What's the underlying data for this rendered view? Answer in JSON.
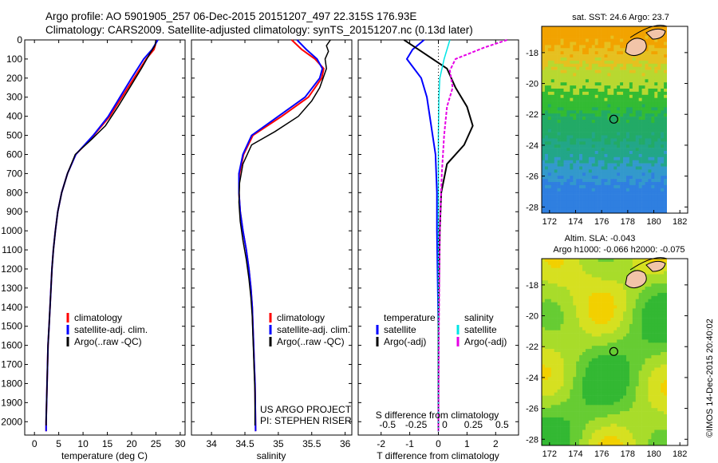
{
  "header": {
    "line1": "Argo profile: AO 5901905_257 06-Dec-2015 20151207_497 22.315S 176.93E",
    "line2": "Climatology: CARS2009. Satellite-adjusted climatology: synTS_20151207.nc (0.13d later)"
  },
  "colors": {
    "climatology": "#ff0000",
    "satellite": "#0000ff",
    "argo": "#000000",
    "satellite_salinity": "#00e5e5",
    "argo_salinity": "#e600e6"
  },
  "depth_ticks": [
    "0",
    "100",
    "200",
    "300",
    "400",
    "500",
    "600",
    "700",
    "800",
    "900",
    "1000",
    "1100",
    "1200",
    "1300",
    "1400",
    "1500",
    "1600",
    "1700",
    "1800",
    "1900",
    "2000"
  ],
  "chart_data": [
    {
      "type": "line",
      "xlabel": "temperature (deg C)",
      "ylabel": "",
      "xlim": [
        -2,
        31
      ],
      "ylim": [
        2070,
        0
      ],
      "xticks": [
        "0",
        "5",
        "10",
        "15",
        "20",
        "25",
        "30"
      ],
      "legend_items": [
        "climatology",
        "satellite-adj. clim.",
        "Argo(..raw -QC)"
      ],
      "series": [
        {
          "name": "climatology",
          "x": [
            25.2,
            24.6,
            23.0,
            20.5,
            18.0,
            15.5,
            12.2,
            8.5,
            6.8,
            5.6,
            4.8,
            4.3,
            3.9,
            3.6,
            3.4,
            3.2,
            3.0,
            2.8,
            2.7,
            2.6,
            2.5,
            2.4,
            2.4
          ],
          "y": [
            0,
            50,
            100,
            200,
            300,
            400,
            500,
            600,
            700,
            800,
            900,
            1000,
            1100,
            1200,
            1300,
            1400,
            1500,
            1600,
            1700,
            1800,
            1900,
            2000,
            2050
          ]
        },
        {
          "name": "satellite-adj. clim.",
          "x": [
            25.4,
            24.2,
            22.5,
            20.0,
            17.6,
            15.2,
            12.1,
            8.5,
            6.8,
            5.6,
            4.8,
            4.3,
            3.9,
            3.6,
            3.4,
            3.2,
            3.0,
            2.8,
            2.7,
            2.6,
            2.5,
            2.4,
            2.4
          ],
          "y": [
            0,
            50,
            100,
            200,
            300,
            400,
            500,
            600,
            700,
            800,
            900,
            1000,
            1100,
            1200,
            1300,
            1400,
            1500,
            1600,
            1700,
            1800,
            1900,
            2000,
            2050
          ]
        },
        {
          "name": "Argo(..raw -QC)",
          "x": [
            25.0,
            24.8,
            23.8,
            22.0,
            19.6,
            17.2,
            14.6,
            11.8,
            8.4,
            6.8,
            5.6,
            4.8,
            4.3,
            3.9,
            3.6,
            3.4,
            3.2,
            3.0,
            2.8,
            2.7,
            2.6,
            2.5,
            2.4,
            2.4
          ],
          "y": [
            0,
            30,
            70,
            150,
            250,
            350,
            450,
            520,
            600,
            700,
            800,
            900,
            1000,
            1100,
            1200,
            1300,
            1400,
            1500,
            1600,
            1700,
            1800,
            1900,
            2000,
            2020
          ]
        }
      ]
    },
    {
      "type": "line",
      "xlabel": "salinity",
      "ylabel": "",
      "xlim": [
        33.7,
        36.1
      ],
      "ylim": [
        2070,
        0
      ],
      "xticks": [
        "34",
        "34.5",
        "35",
        "35.5",
        "36"
      ],
      "legend_items": [
        "climatology",
        "satellite-adj. clim.",
        "Argo(..raw -QC)"
      ],
      "annotation": [
        "US ARGO PROJECT",
        "PI: STEPHEN RISER"
      ],
      "series": [
        {
          "name": "climatology",
          "x": [
            35.2,
            35.35,
            35.55,
            35.68,
            35.65,
            35.45,
            35.05,
            34.62,
            34.48,
            34.42,
            34.41,
            34.43,
            34.47,
            34.52,
            34.56,
            34.59,
            34.61,
            34.62,
            34.63,
            34.64,
            34.65,
            34.66
          ],
          "y": [
            0,
            50,
            100,
            150,
            200,
            300,
            400,
            500,
            600,
            700,
            800,
            900,
            1000,
            1100,
            1200,
            1300,
            1400,
            1500,
            1600,
            1700,
            1800,
            2050
          ]
        },
        {
          "name": "satellite-adj. clim.",
          "x": [
            35.28,
            35.42,
            35.58,
            35.66,
            35.62,
            35.4,
            35.0,
            34.6,
            34.47,
            34.41,
            34.41,
            34.43,
            34.47,
            34.52,
            34.56,
            34.59,
            34.61,
            34.62,
            34.63,
            34.64,
            34.65,
            34.66
          ],
          "y": [
            0,
            50,
            100,
            150,
            200,
            300,
            400,
            500,
            600,
            700,
            800,
            900,
            1000,
            1100,
            1200,
            1300,
            1400,
            1500,
            1600,
            1700,
            1800,
            2050
          ]
        },
        {
          "name": "Argo(..raw -QC)",
          "x": [
            35.78,
            35.72,
            35.75,
            35.7,
            35.72,
            35.62,
            35.5,
            35.3,
            34.95,
            34.6,
            34.47,
            34.42,
            34.41,
            34.43,
            34.47,
            34.52,
            34.56,
            34.59,
            34.61,
            34.62,
            34.63,
            34.64,
            34.65,
            34.65
          ],
          "y": [
            0,
            30,
            60,
            100,
            150,
            250,
            320,
            400,
            480,
            550,
            650,
            750,
            850,
            950,
            1050,
            1150,
            1250,
            1350,
            1450,
            1550,
            1650,
            1750,
            1850,
            2020
          ]
        }
      ]
    },
    {
      "type": "line",
      "xlabel": "T difference from climatology",
      "title": "S difference from climatology",
      "ylabel": "",
      "xlim": [
        -2.8,
        2.8
      ],
      "ylim": [
        2070,
        0
      ],
      "xticks": [
        "-2",
        "-1",
        "0",
        "1",
        "2"
      ],
      "xticks_top": [
        "-0.5",
        "-0.25",
        "0",
        "0.25",
        "0.5"
      ],
      "legend_left_header": "temperature",
      "legend_left": [
        "satellite",
        "Argo(-adj)"
      ],
      "legend_right_header": "salinity",
      "legend_right": [
        "satellite",
        "Argo(-adj)"
      ],
      "series": [
        {
          "name": "temperature satellite",
          "x": [
            -0.5,
            -0.9,
            -1.1,
            -0.6,
            -0.4,
            -0.3,
            -0.2,
            -0.1,
            -0.05,
            -0.05,
            0,
            0
          ],
          "y": [
            0,
            50,
            100,
            200,
            300,
            400,
            500,
            600,
            800,
            1000,
            1500,
            2050
          ]
        },
        {
          "name": "temperature Argo(-adj)",
          "x": [
            -1.2,
            -0.6,
            0.3,
            0.6,
            1.0,
            1.2,
            0.9,
            0.3,
            0.1,
            0.05,
            0,
            0
          ],
          "y": [
            0,
            60,
            150,
            250,
            350,
            450,
            550,
            650,
            800,
            1000,
            1500,
            2050
          ]
        },
        {
          "name": "salinity satellite",
          "x": [
            0.4,
            0.2,
            0.05,
            0.02,
            0,
            0,
            0,
            0,
            0
          ],
          "y": [
            0,
            100,
            200,
            300,
            500,
            800,
            1000,
            1500,
            2050
          ]
        },
        {
          "name": "salinity Argo(-adj)",
          "x": [
            2.4,
            1.6,
            0.6,
            0.4,
            0.5,
            0.3,
            0.2,
            0.12,
            0.05,
            0.02,
            0
          ],
          "y": [
            0,
            40,
            100,
            160,
            250,
            350,
            500,
            700,
            1000,
            1500,
            2050
          ]
        }
      ]
    },
    {
      "type": "heatmap",
      "title": "sat. SST: 24.6 Argo: 23.7",
      "xticks": [
        "172",
        "174",
        "176",
        "178",
        "180",
        "182"
      ],
      "yticks": [
        "-18",
        "-20",
        "-22",
        "-24",
        "-26",
        "-28"
      ],
      "xlim": [
        171.4,
        182.6
      ],
      "ylim": [
        -28.4,
        -16.3
      ],
      "marker": {
        "lon": 176.93,
        "lat": -22.315
      }
    },
    {
      "type": "heatmap",
      "title": "Altim. SLA: -0.043",
      "subtitle": "Argo h1000: -0.066 h2000: -0.075",
      "xticks": [
        "172",
        "174",
        "176",
        "178",
        "180",
        "182"
      ],
      "yticks": [
        "-18",
        "-20",
        "-22",
        "-24",
        "-26",
        "-28"
      ],
      "xlim": [
        171.4,
        182.6
      ],
      "ylim": [
        -28.4,
        -16.3
      ],
      "marker": {
        "lon": 176.93,
        "lat": -22.315
      }
    }
  ],
  "credit": "©IMOS 14-Dec-2015 20:40:02"
}
